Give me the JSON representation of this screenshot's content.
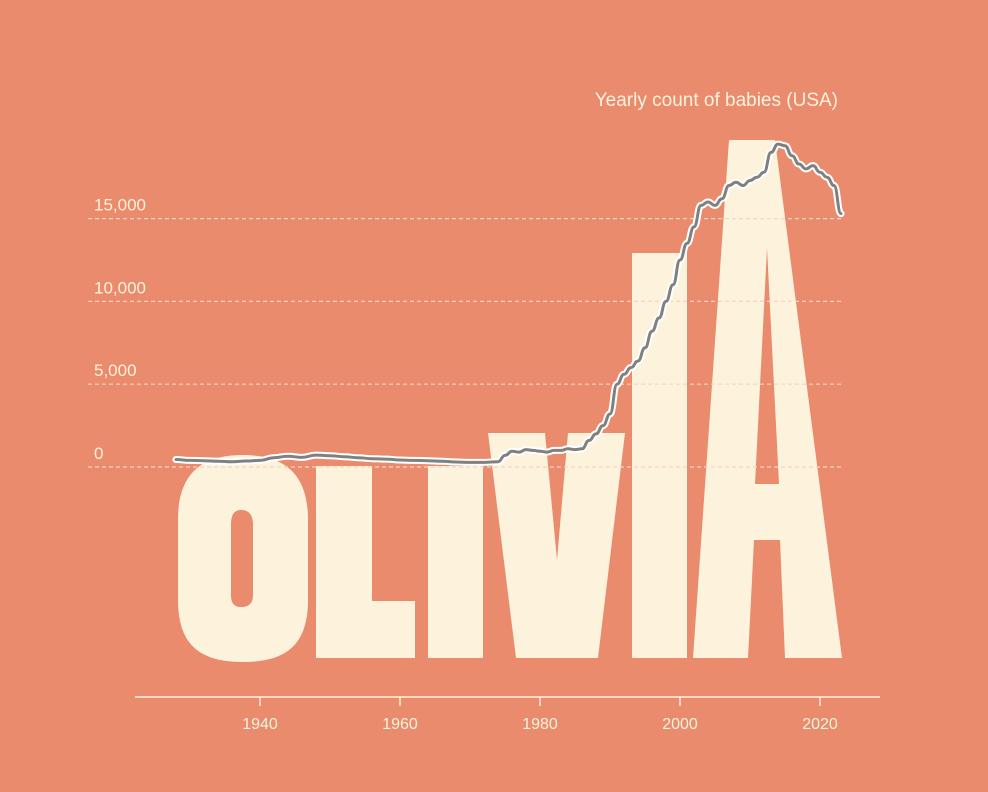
{
  "colors": {
    "background": "#E98B6C",
    "letters": "#FDF2DC",
    "line": "#808080",
    "line_halo": "#FFFFFF",
    "gridline": "#F6D3C1",
    "axis": "#FDF2DC"
  },
  "chart_data": {
    "type": "line",
    "title": "Yearly count of babies (USA)",
    "xlabel": "",
    "ylabel": "",
    "background_text": "OLIVIA",
    "ylim": [
      0,
      20000
    ],
    "xlim": [
      1922,
      2031
    ],
    "grid": true,
    "y_ticks": [
      {
        "value": 0,
        "label": "0"
      },
      {
        "value": 5000,
        "label": "5,000"
      },
      {
        "value": 10000,
        "label": "10,000"
      },
      {
        "value": 15000,
        "label": "15,000"
      }
    ],
    "x_ticks": [
      {
        "value": 1940,
        "label": "1940"
      },
      {
        "value": 1960,
        "label": "1960"
      },
      {
        "value": 1980,
        "label": "1980"
      },
      {
        "value": 2000,
        "label": "2000"
      },
      {
        "value": 2020,
        "label": "2020"
      }
    ],
    "series": [
      {
        "x": [
          1928,
          1930,
          1932,
          1934,
          1936,
          1938,
          1940,
          1942,
          1944,
          1946,
          1948,
          1950,
          1952,
          1954,
          1956,
          1958,
          1960,
          1962,
          1964,
          1966,
          1968,
          1970,
          1972,
          1974,
          1975,
          1976,
          1977,
          1978,
          1979,
          1980,
          1981,
          1982,
          1983,
          1984,
          1985,
          1986,
          1987,
          1988,
          1989,
          1990,
          1991,
          1992,
          1993,
          1994,
          1995,
          1996,
          1997,
          1998,
          1999,
          2000,
          2001,
          2002,
          2003,
          2004,
          2005,
          2006,
          2007,
          2008,
          2009,
          2010,
          2011,
          2012,
          2013,
          2014,
          2015,
          2016,
          2017,
          2018,
          2019,
          2020,
          2021,
          2022,
          2023
        ],
        "y": [
          450,
          400,
          380,
          350,
          320,
          360,
          400,
          560,
          650,
          580,
          720,
          680,
          620,
          560,
          500,
          480,
          420,
          400,
          380,
          350,
          300,
          280,
          280,
          320,
          700,
          950,
          900,
          1050,
          1000,
          950,
          900,
          1000,
          1000,
          1100,
          1050,
          1100,
          1600,
          2000,
          2500,
          3200,
          5000,
          5600,
          6000,
          6400,
          7200,
          8200,
          9000,
          10000,
          11000,
          12500,
          13500,
          14500,
          15800,
          16000,
          15800,
          16200,
          17000,
          17200,
          17000,
          17300,
          17500,
          17800,
          19000,
          19500,
          19400,
          18800,
          18300,
          18000,
          18200,
          17800,
          17500,
          17000,
          15300
        ]
      }
    ]
  }
}
